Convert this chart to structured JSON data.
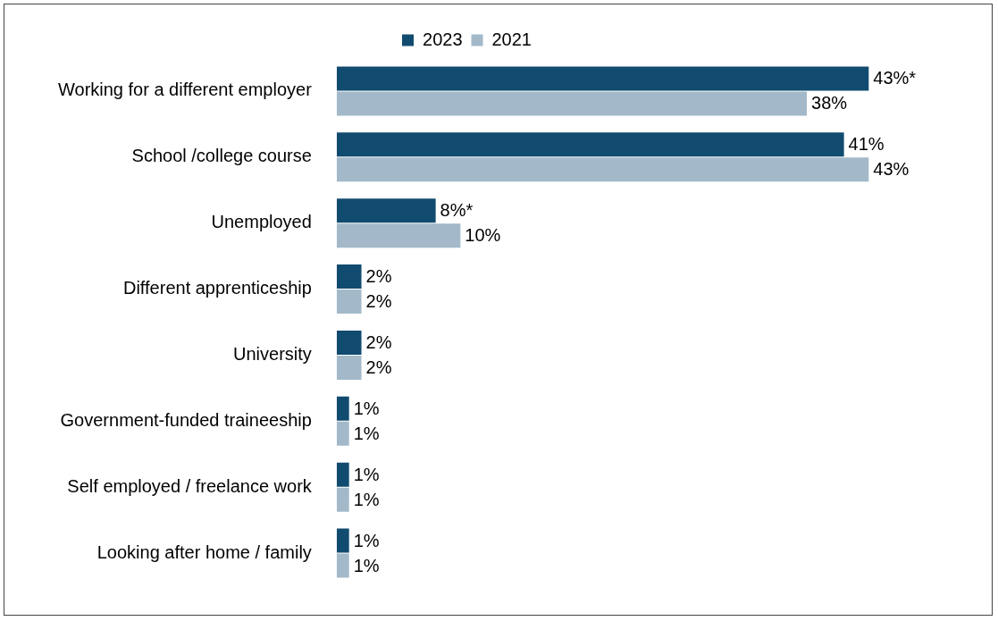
{
  "chart_data": {
    "type": "bar",
    "orientation": "horizontal",
    "legend": "top",
    "tick_labels": "y",
    "categories": [
      "Working for a different employer",
      "School /college course",
      "Unemployed",
      "Different apprenticeship",
      "University",
      "Government-funded traineeship",
      "Self employed / freelance work",
      "Looking after home / family"
    ],
    "series": [
      {
        "name": "2023",
        "color": "#114b6f",
        "values": [
          43,
          41,
          8,
          2,
          2,
          1,
          1,
          1
        ],
        "value_labels": [
          "43%*",
          "41%",
          "8%*",
          "2%",
          "2%",
          "1%",
          "1%",
          "1%"
        ]
      },
      {
        "name": "2021",
        "color": "#a3b9c9",
        "values": [
          38,
          43,
          10,
          2,
          2,
          1,
          1,
          1
        ],
        "value_labels": [
          "38%",
          "43%",
          "10%",
          "2%",
          "2%",
          "1%",
          "1%",
          "1%"
        ]
      }
    ]
  }
}
